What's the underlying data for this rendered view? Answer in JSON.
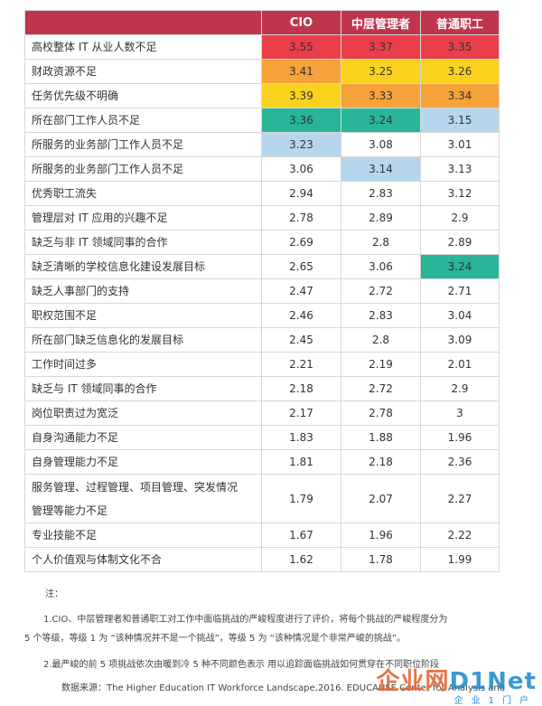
{
  "table": {
    "headers": [
      "",
      "CIO",
      "中层管理者",
      "普通职工"
    ],
    "header_color": "#c0354e",
    "rows": [
      {
        "label": "高校整体 IT 从业人数不足",
        "values": [
          "3.55",
          "3.37",
          "3.35"
        ],
        "colors": [
          "#ea3e49",
          "#ea3e49",
          "#ea3e49"
        ]
      },
      {
        "label": "财政资源不足",
        "values": [
          "3.41",
          "3.25",
          "3.26"
        ],
        "colors": [
          "#f6a23a",
          "#fbd21e",
          "#fbd21e"
        ]
      },
      {
        "label": "任务优先级不明确",
        "values": [
          "3.39",
          "3.33",
          "3.34"
        ],
        "colors": [
          "#fbd21e",
          "#f6a23a",
          "#f6a23a"
        ]
      },
      {
        "label": "所在部门工作人员不足",
        "values": [
          "3.36",
          "3.24",
          "3.15"
        ],
        "colors": [
          "#28b598",
          "#28b598",
          "#b6d6ed"
        ]
      },
      {
        "label": "所服务的业务部门工作人员不足",
        "values": [
          "3.23",
          "3.08",
          "3.01"
        ],
        "colors": [
          "#b6d6ed",
          "",
          ""
        ]
      },
      {
        "label": "所服务的业务部门工作人员不足",
        "values": [
          "3.06",
          "3.14",
          "3.13"
        ],
        "colors": [
          "",
          "#b6d6ed",
          ""
        ]
      },
      {
        "label": "优秀职工流失",
        "values": [
          "2.94",
          "2.83",
          "3.12"
        ],
        "colors": [
          "",
          "",
          ""
        ]
      },
      {
        "label": "管理层对 IT 应用的兴趣不足",
        "values": [
          "2.78",
          "2.89",
          "2.9"
        ],
        "colors": [
          "",
          "",
          ""
        ]
      },
      {
        "label": "缺乏与非 IT 领域同事的合作",
        "values": [
          "2.69",
          "2.8",
          "2.89"
        ],
        "colors": [
          "",
          "",
          ""
        ]
      },
      {
        "label": "缺乏清晰的学校信息化建设发展目标",
        "values": [
          "2.65",
          "3.06",
          "3.24"
        ],
        "colors": [
          "",
          "",
          "#28b598"
        ]
      },
      {
        "label": "缺乏人事部门的支持",
        "values": [
          "2.47",
          "2.72",
          "2.71"
        ],
        "colors": [
          "",
          "",
          ""
        ]
      },
      {
        "label": "职权范围不足",
        "values": [
          "2.46",
          "2.83",
          "3.04"
        ],
        "colors": [
          "",
          "",
          ""
        ]
      },
      {
        "label": "所在部门缺乏信息化的发展目标",
        "values": [
          "2.45",
          "2.8",
          "3.09"
        ],
        "colors": [
          "",
          "",
          ""
        ]
      },
      {
        "label": "工作时间过多",
        "values": [
          "2.21",
          "2.19",
          "2.01"
        ],
        "colors": [
          "",
          "",
          ""
        ]
      },
      {
        "label": "缺乏与 IT 领域同事的合作",
        "values": [
          "2.18",
          "2.72",
          "2.9"
        ],
        "colors": [
          "",
          "",
          ""
        ]
      },
      {
        "label": "岗位职责过为宽泛",
        "values": [
          "2.17",
          "2.78",
          "3"
        ],
        "colors": [
          "",
          "",
          ""
        ]
      },
      {
        "label": "自身沟通能力不足",
        "values": [
          "1.83",
          "1.88",
          "1.96"
        ],
        "colors": [
          "",
          "",
          ""
        ]
      },
      {
        "label": "自身管理能力不足",
        "values": [
          "1.81",
          "2.18",
          "2.36"
        ],
        "colors": [
          "",
          "",
          ""
        ]
      },
      {
        "label": "服务管理、过程管理、项目管理、突发情况管理等能力不足",
        "values": [
          "1.79",
          "2.07",
          "2.27"
        ],
        "colors": [
          "",
          "",
          ""
        ],
        "tall": true
      },
      {
        "label": "专业技能不足",
        "values": [
          "1.67",
          "1.96",
          "2.22"
        ],
        "colors": [
          "",
          "",
          ""
        ]
      },
      {
        "label": "个人价值观与体制文化不合",
        "values": [
          "1.62",
          "1.78",
          "1.99"
        ],
        "colors": [
          "",
          "",
          ""
        ]
      }
    ]
  },
  "notes": {
    "title": "注：",
    "line1": "1.CIO、中层管理者和普通职工对工作中面临挑战的严峻程度进行了评价，将每个挑战的严峻程度分为",
    "line2": "5 个等级，等级 1 为 “该种情况并不是一个挑战”，等级 5 为 “该种情况是个非常严峻的挑战”。",
    "line3": "2.最严峻的前 5 项挑战依次由暖到冷 5 种不同颜色表示 用以追踪面临挑战如何贯穿在不同职位阶段",
    "source": "数据来源：The Higher Education IT Workforce Landscape,2016. EDUCAUSE Center for Analysis and"
  },
  "watermark": {
    "brand_a": "企业网",
    "brand_b": "D1Net",
    "tagline": "企业1门户"
  }
}
